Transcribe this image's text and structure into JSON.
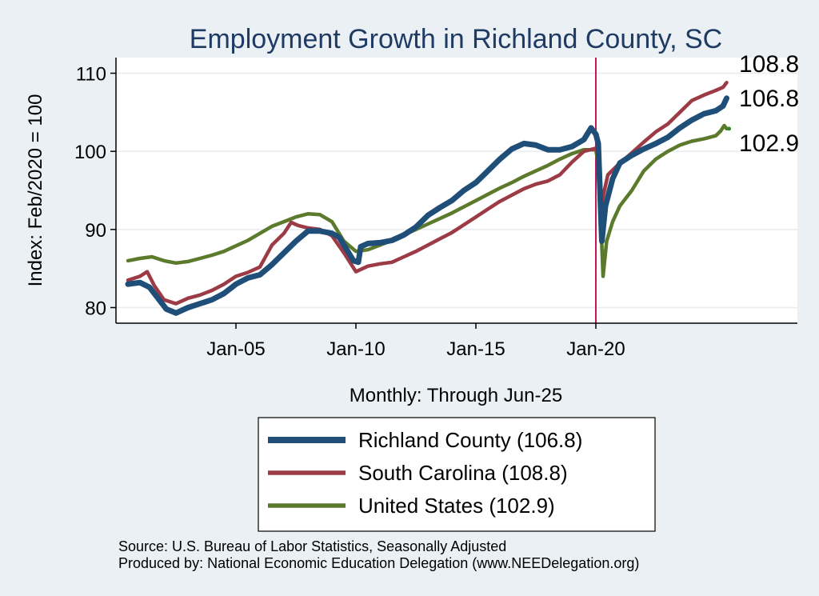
{
  "chart_data": {
    "type": "line",
    "title": "Employment Growth in Richland  County, SC",
    "xlabel": "Monthly: Through Jun-25",
    "ylabel": "Index: Feb/2020 = 100",
    "ylim": [
      78,
      112
    ],
    "y_ticks": [
      80,
      90,
      100,
      110
    ],
    "x_ticks": [
      {
        "label": "Jan-05",
        "t": 2005.0
      },
      {
        "label": "Jan-10",
        "t": 2010.0
      },
      {
        "label": "Jan-15",
        "t": 2015.0
      },
      {
        "label": "Jan-20",
        "t": 2020.0
      }
    ],
    "xlim": [
      2000.0,
      2028.4
    ],
    "reference_line": {
      "t": 2020.0,
      "color": "#c2185b"
    },
    "series": [
      {
        "name": "Richland  County",
        "legend_label": "Richland  County (106.8)",
        "end_value": "106.8",
        "color": "#1f4e79",
        "points": [
          [
            2000.5,
            83.0
          ],
          [
            2001.0,
            83.2
          ],
          [
            2001.4,
            82.6
          ],
          [
            2001.8,
            81.0
          ],
          [
            2002.1,
            79.8
          ],
          [
            2002.5,
            79.3
          ],
          [
            2003.0,
            80.0
          ],
          [
            2003.5,
            80.5
          ],
          [
            2004.0,
            81.0
          ],
          [
            2004.5,
            81.8
          ],
          [
            2005.0,
            83.0
          ],
          [
            2005.5,
            83.8
          ],
          [
            2006.0,
            84.2
          ],
          [
            2006.5,
            85.5
          ],
          [
            2007.0,
            87.0
          ],
          [
            2007.5,
            88.5
          ],
          [
            2008.0,
            89.8
          ],
          [
            2008.5,
            89.8
          ],
          [
            2009.0,
            89.5
          ],
          [
            2009.3,
            89.0
          ],
          [
            2009.6,
            87.5
          ],
          [
            2009.9,
            86.0
          ],
          [
            2010.1,
            85.8
          ],
          [
            2010.2,
            87.8
          ],
          [
            2010.5,
            88.2
          ],
          [
            2011.0,
            88.3
          ],
          [
            2011.5,
            88.6
          ],
          [
            2012.0,
            89.3
          ],
          [
            2012.5,
            90.3
          ],
          [
            2013.0,
            91.8
          ],
          [
            2013.5,
            92.8
          ],
          [
            2014.0,
            93.7
          ],
          [
            2014.5,
            95.0
          ],
          [
            2015.0,
            96.0
          ],
          [
            2015.5,
            97.5
          ],
          [
            2016.0,
            99.0
          ],
          [
            2016.5,
            100.3
          ],
          [
            2017.0,
            101.0
          ],
          [
            2017.5,
            100.8
          ],
          [
            2018.0,
            100.2
          ],
          [
            2018.5,
            100.2
          ],
          [
            2019.0,
            100.6
          ],
          [
            2019.5,
            101.5
          ],
          [
            2019.8,
            103.0
          ],
          [
            2020.0,
            102.2
          ],
          [
            2020.1,
            101.0
          ],
          [
            2020.25,
            88.5
          ],
          [
            2020.4,
            93.0
          ],
          [
            2020.7,
            96.5
          ],
          [
            2021.0,
            98.5
          ],
          [
            2021.5,
            99.5
          ],
          [
            2022.0,
            100.3
          ],
          [
            2022.5,
            101.0
          ],
          [
            2023.0,
            101.8
          ],
          [
            2023.5,
            103.0
          ],
          [
            2024.0,
            104.0
          ],
          [
            2024.5,
            104.8
          ],
          [
            2025.0,
            105.2
          ],
          [
            2025.3,
            105.8
          ],
          [
            2025.45,
            106.8
          ]
        ]
      },
      {
        "name": "South Carolina",
        "legend_label": "South Carolina (108.8)",
        "end_value": "108.8",
        "color": "#9c3a45",
        "points": [
          [
            2000.5,
            83.5
          ],
          [
            2001.0,
            84.0
          ],
          [
            2001.3,
            84.6
          ],
          [
            2001.6,
            82.8
          ],
          [
            2002.0,
            81.0
          ],
          [
            2002.5,
            80.5
          ],
          [
            2003.0,
            81.2
          ],
          [
            2003.5,
            81.6
          ],
          [
            2004.0,
            82.2
          ],
          [
            2004.5,
            83.0
          ],
          [
            2005.0,
            84.0
          ],
          [
            2005.5,
            84.5
          ],
          [
            2006.0,
            85.2
          ],
          [
            2006.5,
            88.0
          ],
          [
            2007.0,
            89.5
          ],
          [
            2007.3,
            90.9
          ],
          [
            2007.6,
            90.5
          ],
          [
            2008.0,
            90.2
          ],
          [
            2008.5,
            90.0
          ],
          [
            2009.0,
            89.2
          ],
          [
            2009.5,
            87.0
          ],
          [
            2010.0,
            84.6
          ],
          [
            2010.5,
            85.3
          ],
          [
            2011.0,
            85.6
          ],
          [
            2011.5,
            85.8
          ],
          [
            2012.0,
            86.5
          ],
          [
            2012.5,
            87.2
          ],
          [
            2013.0,
            88.0
          ],
          [
            2013.5,
            88.8
          ],
          [
            2014.0,
            89.6
          ],
          [
            2014.5,
            90.6
          ],
          [
            2015.0,
            91.6
          ],
          [
            2015.5,
            92.6
          ],
          [
            2016.0,
            93.6
          ],
          [
            2016.5,
            94.4
          ],
          [
            2017.0,
            95.2
          ],
          [
            2017.5,
            95.8
          ],
          [
            2018.0,
            96.2
          ],
          [
            2018.5,
            97.0
          ],
          [
            2019.0,
            98.6
          ],
          [
            2019.5,
            100.0
          ],
          [
            2020.0,
            100.4
          ],
          [
            2020.1,
            99.5
          ],
          [
            2020.25,
            93.5
          ],
          [
            2020.5,
            97.0
          ],
          [
            2021.0,
            98.5
          ],
          [
            2021.5,
            99.8
          ],
          [
            2022.0,
            101.2
          ],
          [
            2022.5,
            102.5
          ],
          [
            2023.0,
            103.5
          ],
          [
            2023.5,
            105.0
          ],
          [
            2024.0,
            106.5
          ],
          [
            2024.5,
            107.2
          ],
          [
            2025.0,
            107.8
          ],
          [
            2025.3,
            108.2
          ],
          [
            2025.45,
            108.8
          ]
        ]
      },
      {
        "name": "United States",
        "legend_label": "United States (102.9)",
        "end_value": "102.9",
        "color": "#5c7a2c",
        "points": [
          [
            2000.5,
            86.0
          ],
          [
            2001.0,
            86.3
          ],
          [
            2001.5,
            86.5
          ],
          [
            2002.0,
            86.0
          ],
          [
            2002.5,
            85.7
          ],
          [
            2003.0,
            85.9
          ],
          [
            2003.5,
            86.3
          ],
          [
            2004.0,
            86.7
          ],
          [
            2004.5,
            87.2
          ],
          [
            2005.0,
            87.9
          ],
          [
            2005.5,
            88.6
          ],
          [
            2006.0,
            89.5
          ],
          [
            2006.5,
            90.4
          ],
          [
            2007.0,
            91.0
          ],
          [
            2007.5,
            91.6
          ],
          [
            2008.0,
            92.0
          ],
          [
            2008.5,
            91.9
          ],
          [
            2009.0,
            91.0
          ],
          [
            2009.5,
            88.5
          ],
          [
            2010.0,
            87.2
          ],
          [
            2010.5,
            87.4
          ],
          [
            2011.0,
            88.0
          ],
          [
            2011.5,
            88.6
          ],
          [
            2012.0,
            89.3
          ],
          [
            2012.5,
            90.0
          ],
          [
            2013.0,
            90.7
          ],
          [
            2013.5,
            91.4
          ],
          [
            2014.0,
            92.1
          ],
          [
            2014.5,
            92.9
          ],
          [
            2015.0,
            93.7
          ],
          [
            2015.5,
            94.5
          ],
          [
            2016.0,
            95.3
          ],
          [
            2016.5,
            96.0
          ],
          [
            2017.0,
            96.8
          ],
          [
            2017.5,
            97.5
          ],
          [
            2018.0,
            98.2
          ],
          [
            2018.5,
            99.0
          ],
          [
            2019.0,
            99.7
          ],
          [
            2019.5,
            100.2
          ],
          [
            2020.0,
            100.2
          ],
          [
            2020.12,
            98.0
          ],
          [
            2020.3,
            84.0
          ],
          [
            2020.45,
            88.5
          ],
          [
            2020.7,
            91.0
          ],
          [
            2021.0,
            93.0
          ],
          [
            2021.5,
            95.0
          ],
          [
            2022.0,
            97.5
          ],
          [
            2022.5,
            99.0
          ],
          [
            2023.0,
            100.0
          ],
          [
            2023.5,
            100.8
          ],
          [
            2024.0,
            101.3
          ],
          [
            2024.5,
            101.6
          ],
          [
            2025.0,
            102.0
          ],
          [
            2025.2,
            102.6
          ],
          [
            2025.35,
            103.3
          ],
          [
            2025.45,
            102.9
          ]
        ]
      }
    ]
  },
  "source_line": "Source: U.S. Bureau of Labor Statistics, Seasonally Adjusted",
  "produced_line": "Produced by: National Economic Education Delegation (www.NEEDelegation.org)"
}
